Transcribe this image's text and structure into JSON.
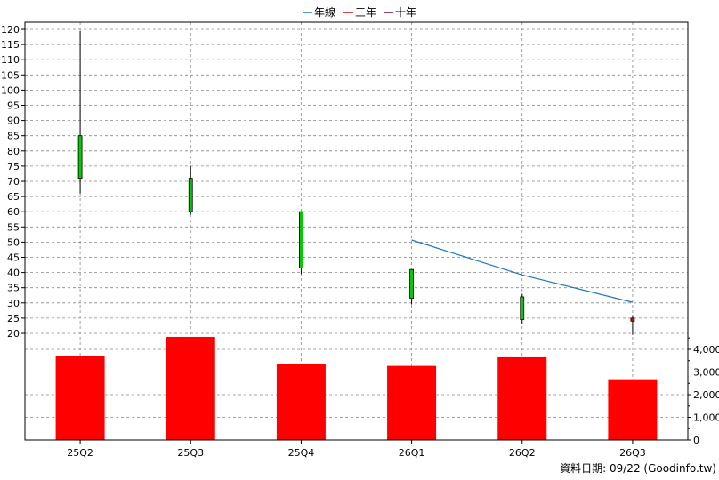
{
  "chart_data": {
    "type": "candlestick",
    "legend": {
      "placement": "top-center",
      "items": [
        {
          "label": "年線",
          "color": "#1f77c0"
        },
        {
          "label": "三年",
          "color": "#e00000"
        },
        {
          "label": "十年",
          "color": "#800040"
        }
      ]
    },
    "categories": [
      "25Q2",
      "25Q3",
      "25Q4",
      "26Q1",
      "26Q2",
      "26Q3"
    ],
    "price": {
      "ylim": [
        15,
        122
      ],
      "ticks": [
        20,
        25,
        30,
        35,
        40,
        45,
        50,
        55,
        60,
        65,
        70,
        75,
        80,
        85,
        90,
        95,
        100,
        105,
        110,
        115,
        120
      ],
      "candles": [
        {
          "open": 85,
          "close": 71,
          "high": 119.5,
          "low": 66,
          "color": "#00cc00"
        },
        {
          "open": 71,
          "close": 60,
          "high": 75,
          "low": 59,
          "color": "#00cc00"
        },
        {
          "open": 60,
          "close": 41.5,
          "high": 60,
          "low": 39.5,
          "color": "#00cc00"
        },
        {
          "open": 41,
          "close": 31.5,
          "high": 41,
          "low": 29.5,
          "color": "#00cc00"
        },
        {
          "open": 32,
          "close": 24.5,
          "high": 33,
          "low": 23,
          "color": "#00cc00"
        },
        {
          "open": 25,
          "close": 24,
          "high": 26,
          "low": 19.5,
          "color": "#e00000"
        }
      ],
      "annual_line": {
        "color": "#1f77c0",
        "points": [
          [
            3,
            50.7
          ],
          [
            4,
            39.2
          ],
          [
            5,
            30.2
          ]
        ]
      }
    },
    "volume": {
      "ylim": [
        0,
        4600
      ],
      "ticks": [
        0,
        1000,
        2000,
        3000,
        4000
      ],
      "tick_labels": [
        "0",
        "1,000",
        "2,000",
        "3,000",
        "4,000"
      ],
      "values": [
        3700,
        4550,
        3350,
        3270,
        3650,
        2680
      ],
      "color": "#ff0000"
    }
  },
  "footer": {
    "source": "資料日期: 09/22  (Goodinfo.tw)"
  }
}
